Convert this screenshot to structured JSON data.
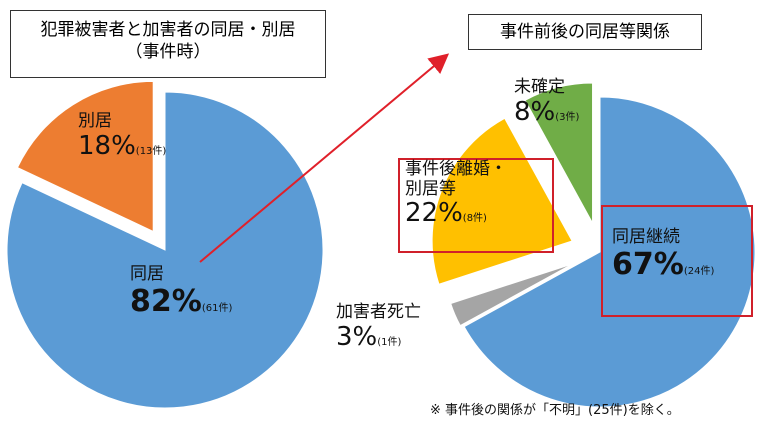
{
  "chart_data": [
    {
      "type": "pie",
      "title": "犯罪被害者と加害者の同居・別居（事件時）",
      "categories": [
        "同居",
        "別居"
      ],
      "values": [
        82,
        18
      ],
      "value_labels": [
        "82%",
        "18%"
      ],
      "counts": [
        "(61件)",
        "(13件)"
      ],
      "colors": [
        "#5b9bd5",
        "#ed7d31"
      ]
    },
    {
      "type": "pie",
      "title": "事件前後の同居等関係",
      "categories": [
        "同居継続",
        "加害者死亡",
        "事件後離婚・別居等",
        "未確定"
      ],
      "values": [
        67,
        3,
        22,
        8
      ],
      "value_labels": [
        "67%",
        "3%",
        "22%",
        "8%"
      ],
      "counts": [
        "(24件)",
        "(1件)",
        "(8件)",
        "(3件)"
      ],
      "colors": [
        "#5b9bd5",
        "#a5a5a5",
        "#ffc000",
        "#70ad47"
      ],
      "note": "※ 事件後の関係が「不明」(25件)を除く。"
    }
  ]
}
